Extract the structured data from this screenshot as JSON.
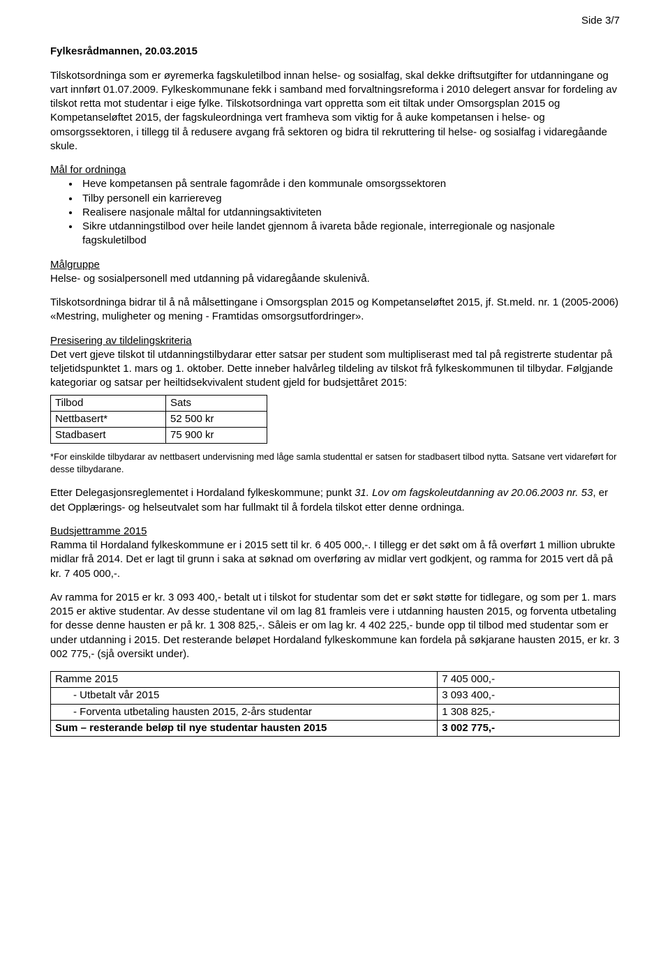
{
  "pageNumber": "Side 3/7",
  "author": "Fylkesrådmannen, 20.03.2015",
  "para1": "Tilskotsordninga som er øyremerka fagskuletilbod innan helse- og sosialfag, skal dekke driftsutgifter for utdanningane og vart innført 01.07.2009. Fylkeskommunane fekk i samband med forvaltningsreforma i 2010 delegert ansvar for fordeling av tilskot retta mot studentar i eige fylke. Tilskotsordninga vart oppretta som eit tiltak under Omsorgsplan 2015 og Kompetanseløftet 2015, der fagskuleordninga vert framheva som viktig for å auke kompetansen i helse- og omsorgssektoren, i tillegg til å redusere avgang frå sektoren og bidra til rekruttering til helse- og sosialfag i vidaregåande skule.",
  "goalsHeading": "Mål for ordninga",
  "goals": [
    "Heve kompetansen på sentrale fagområde i den kommunale omsorgssektoren",
    "Tilby personell ein karriereveg",
    "Realisere nasjonale måltal for utdanningsaktiviteten",
    "Sikre utdanningstilbod over heile landet gjennom å ivareta både regionale, interregionale og nasjonale fagskuletilbod"
  ],
  "targetGroupHeading": "Målgruppe",
  "targetGroupText": "Helse- og sosialpersonell med utdanning på vidaregåande skulenivå.",
  "para2": "Tilskotsordninga bidrar til å nå målsettingane i Omsorgsplan 2015 og Kompetanseløftet 2015, jf. St.meld. nr. 1 (2005-2006) «Mestring, muligheter og mening - Framtidas omsorgsutfordringer».",
  "criteriaHeading": "Presisering av tildelingskriteria",
  "criteriaText": "Det vert gjeve tilskot til utdanningstilbydarar etter satsar per student som multipliserast med tal på registrerte studentar på teljetidspunktet 1. mars og 1. oktober. Dette inneber halvårleg tildeling av tilskot frå fylkeskommunen til tilbydar. Følgjande kategoriar og satsar per heiltidsekvivalent student gjeld for budsjettåret 2015:",
  "ratesTable": {
    "col1Header": "Tilbod",
    "col2Header": "Sats",
    "rows": [
      {
        "c1": "Nettbasert*",
        "c2": "52 500 kr"
      },
      {
        "c1": "Stadbasert",
        "c2": "75 900 kr"
      }
    ],
    "col1Width": "165px",
    "col2Width": "145px"
  },
  "footnote": "*For einskilde tilbydarar av nettbasert undervisning med låge samla studenttal er satsen for stadbasert tilbod nytta. Satsane vert vidareført for desse tilbydarane.",
  "para3a": "Etter Delegasjonsreglementet i Hordaland fylkeskommune; punkt ",
  "para3italic": "31. Lov om fagskoleutdanning av 20.06.2003 nr. 53",
  "para3b": ", er det Opplærings- og helseutvalet som har fullmakt til å fordela tilskot etter denne ordninga.",
  "budgetHeading": "Budsjettramme 2015",
  "budgetText": "Ramma til Hordaland fylkeskommune er i 2015 sett til kr. 6 405 000,-. I tillegg er det søkt om å få overført 1 million ubrukte midlar frå 2014. Det er lagt til grunn i saka at søknad om overføring av midlar vert godkjent, og ramma for 2015 vert då på kr. 7 405 000,-.",
  "para4": "Av ramma for 2015 er kr. 3 093 400,- betalt ut i tilskot for studentar som det er søkt støtte for tidlegare, og som per 1. mars 2015 er aktive studentar. Av desse studentane vil om lag 81 framleis vere i utdanning hausten 2015, og forventa utbetaling for desse denne hausten er på kr. 1 308 825,-. Såleis er om lag kr. 4 402 225,- bunde opp til tilbod med studentar som er under utdanning i 2015. Det resterande beløpet Hordaland fylkeskommune kan fordela på søkjarane hausten 2015, er kr. 3 002 775,- (sjå oversikt under).",
  "budgetTable": {
    "rows": [
      {
        "c1": "Ramme 2015",
        "c2": "7 405 000,-",
        "indent": false
      },
      {
        "c1": "-    Utbetalt vår 2015",
        "c2": "3 093 400,-",
        "indent": true
      },
      {
        "c1": "-    Forventa utbetaling hausten 2015, 2-års studentar",
        "c2": "1 308 825,-",
        "indent": true
      },
      {
        "c1": "Sum – resterande beløp til nye studentar hausten 2015",
        "c2": "3 002 775,-",
        "indent": false,
        "bold": true
      }
    ],
    "col1Width": "68%",
    "col2Width": "32%"
  }
}
